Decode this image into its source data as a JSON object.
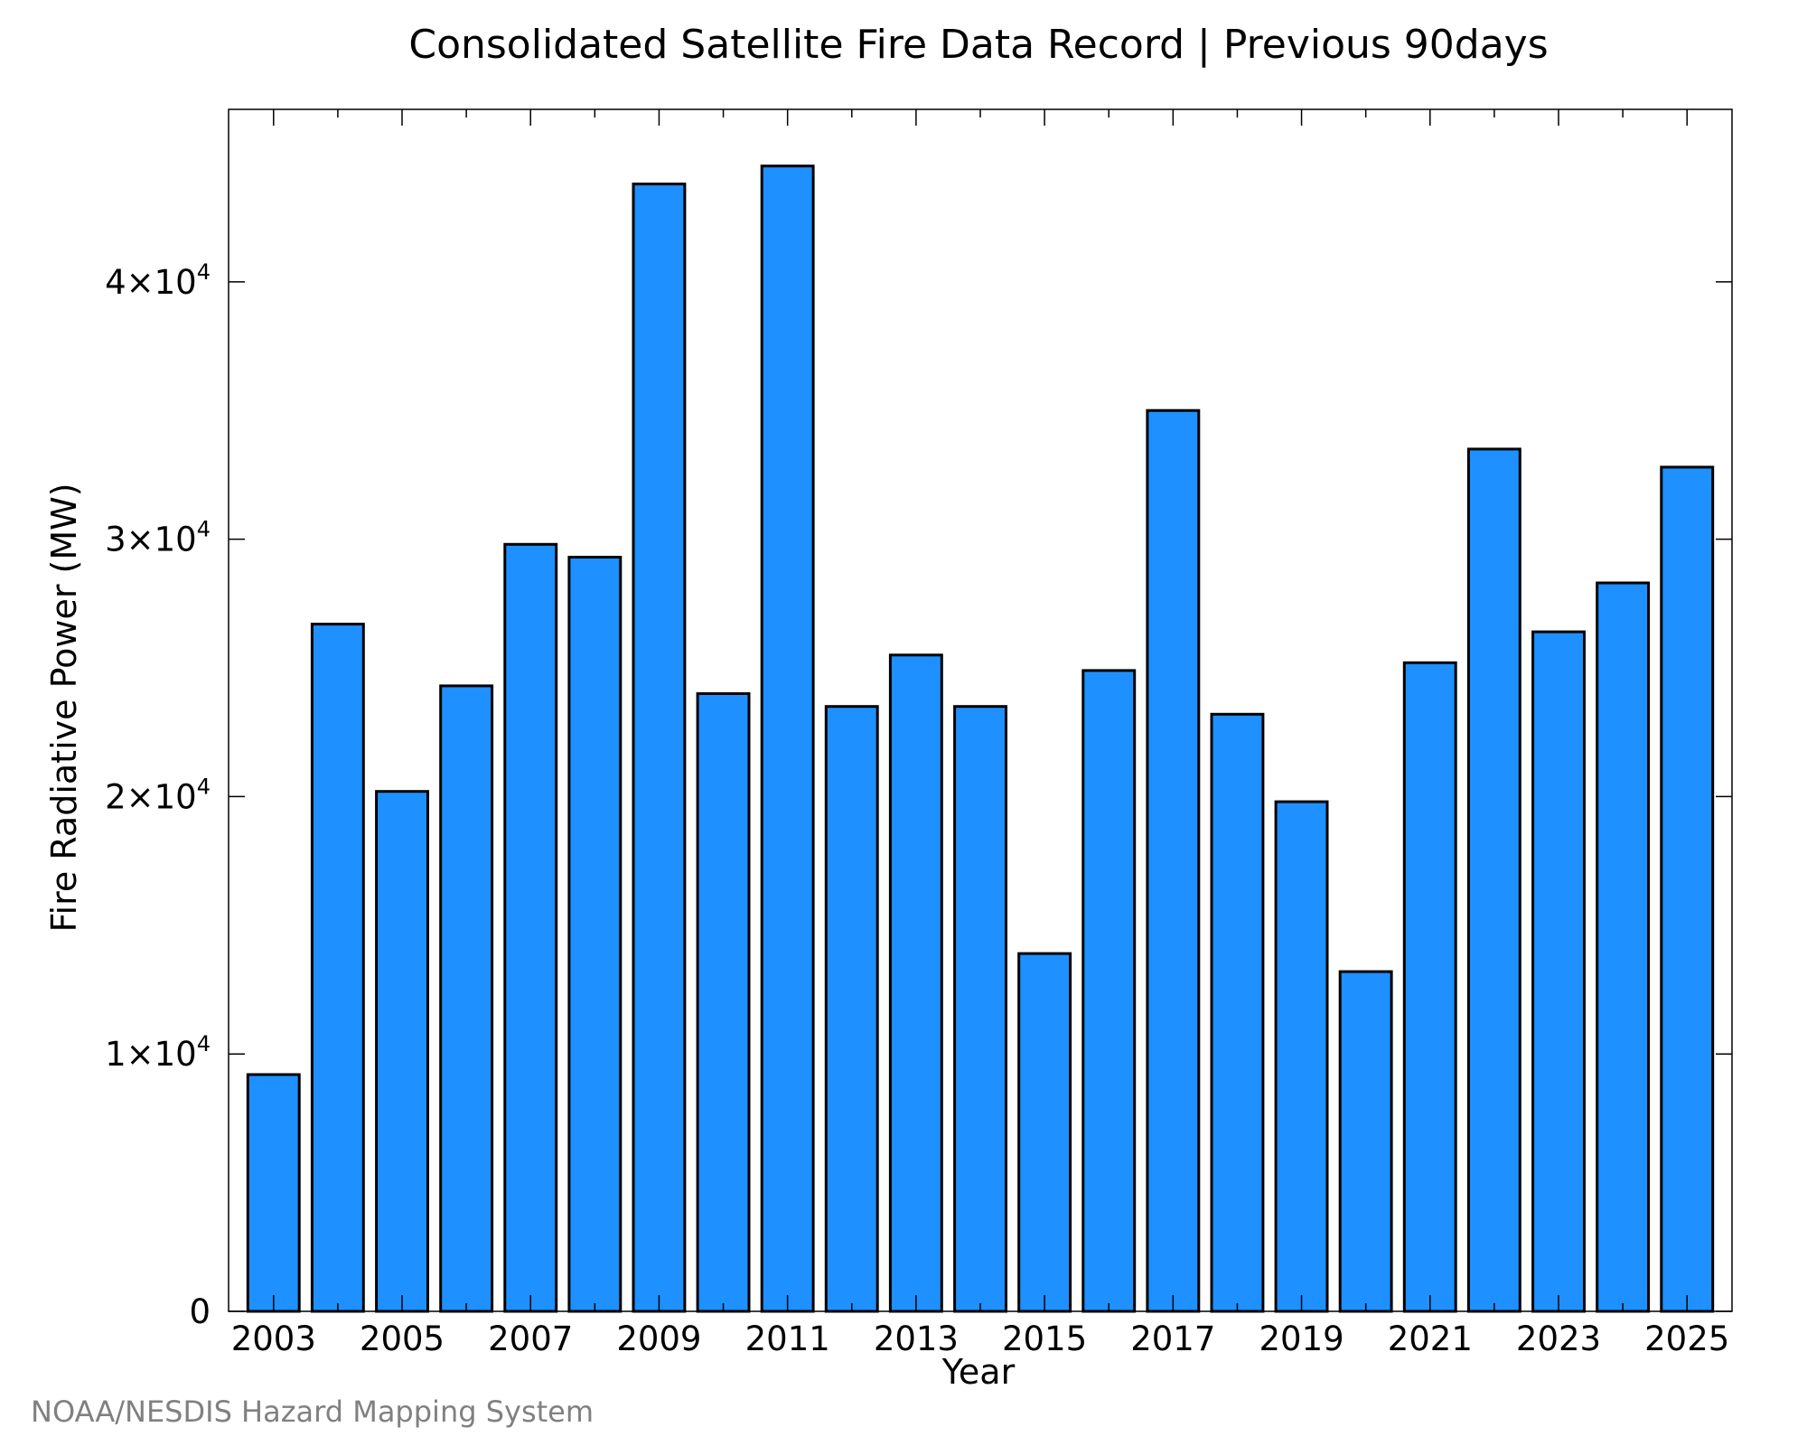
{
  "credit": "NOAA/NESDIS Hazard Mapping System",
  "colors": {
    "bar_fill": "#1e90ff",
    "bar_stroke": "#000000",
    "credit_text": "#808080"
  },
  "chart_data": {
    "type": "bar",
    "title": "Consolidated Satellite Fire Data Record | Previous 90days",
    "xlabel": "Year",
    "ylabel": "Fire Radiative Power (MW)",
    "categories": [
      "2003",
      "2004",
      "2005",
      "2006",
      "2007",
      "2008",
      "2009",
      "2010",
      "2011",
      "2012",
      "2013",
      "2014",
      "2015",
      "2016",
      "2017",
      "2018",
      "2019",
      "2020",
      "2021",
      "2022",
      "2023",
      "2024",
      "2025"
    ],
    "values": [
      9200,
      26700,
      20200,
      24300,
      29800,
      29300,
      43800,
      24000,
      44500,
      23500,
      25500,
      23500,
      13900,
      24900,
      35000,
      23200,
      19800,
      13200,
      25200,
      33500,
      26400,
      28300,
      32800
    ],
    "ylim": [
      0,
      46700
    ],
    "yticks": [
      {
        "value": 0,
        "label": "0",
        "exp": ""
      },
      {
        "value": 10000,
        "label": "1×10",
        "exp": "4"
      },
      {
        "value": 20000,
        "label": "2×10",
        "exp": "4"
      },
      {
        "value": 30000,
        "label": "3×10",
        "exp": "4"
      },
      {
        "value": 40000,
        "label": "4×10",
        "exp": "4"
      }
    ],
    "xtick_labels": [
      "2003",
      "2005",
      "2007",
      "2009",
      "2011",
      "2013",
      "2015",
      "2017",
      "2019",
      "2021",
      "2023",
      "2025"
    ],
    "grid": false,
    "legend": "none"
  }
}
